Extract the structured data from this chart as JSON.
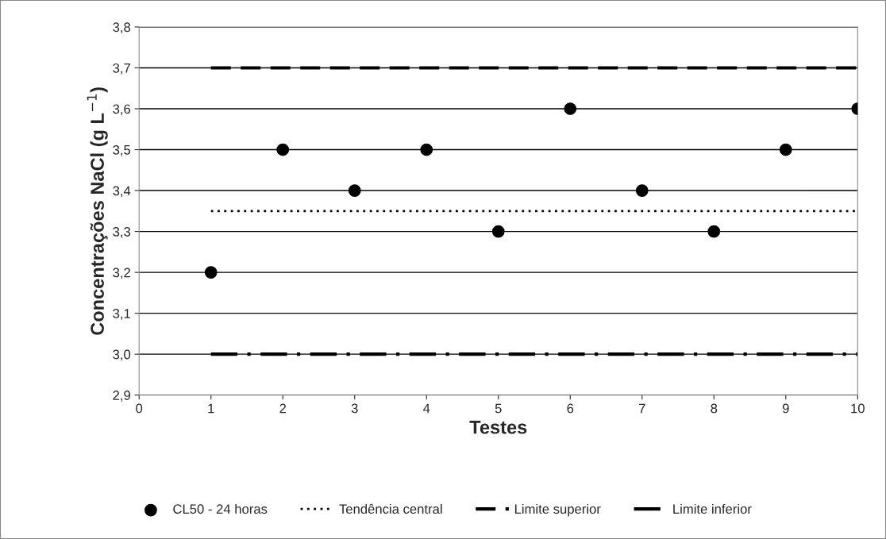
{
  "chart_data": {
    "type": "scatter",
    "xlabel": "Testes",
    "ylabel": "Concentrações NaCl (g L$^{−1}$)",
    "xlim": [
      0,
      10
    ],
    "xticks": [
      0,
      1,
      2,
      3,
      4,
      5,
      6,
      7,
      8,
      9,
      10
    ],
    "ylim": [
      2.9,
      3.8
    ],
    "yticks": [
      {
        "value": 2.9,
        "label": "2,9"
      },
      {
        "value": 3.0,
        "label": "3,0"
      },
      {
        "value": 3.1,
        "label": "3,1"
      },
      {
        "value": 3.2,
        "label": "3,2"
      },
      {
        "value": 3.3,
        "label": "3,3"
      },
      {
        "value": 3.4,
        "label": "3,4"
      },
      {
        "value": 3.5,
        "label": "3,5"
      },
      {
        "value": 3.6,
        "label": "3,6"
      },
      {
        "value": 3.7,
        "label": "3,7"
      },
      {
        "value": 3.8,
        "label": "3,8"
      }
    ],
    "grid": "y",
    "legend": "bottom",
    "series": [
      {
        "name": "CL50 - 24 horas",
        "color": "#000000",
        "marker": "circle",
        "x": [
          1,
          2,
          3,
          4,
          5,
          6,
          7,
          8,
          9,
          10
        ],
        "values": [
          3.2,
          3.5,
          3.4,
          3.5,
          3.3,
          3.6,
          3.4,
          3.3,
          3.5,
          3.6
        ]
      },
      {
        "name": "Tendência central",
        "type": "line",
        "color": "#000000",
        "line_style": "dotted",
        "x": [
          1,
          10
        ],
        "values": [
          3.35,
          3.35
        ]
      },
      {
        "name": "Limite superior",
        "type": "line",
        "color": "#000000",
        "line_style": "dashed",
        "x": [
          1,
          10
        ],
        "values": [
          3.7,
          3.7
        ]
      },
      {
        "name": "Limite inferior",
        "type": "line",
        "color": "#000000",
        "line_style": "dashdot",
        "x": [
          1,
          10
        ],
        "values": [
          3.0,
          3.0
        ]
      }
    ]
  }
}
